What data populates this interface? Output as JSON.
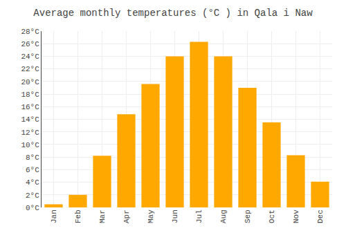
{
  "chart_data": {
    "type": "bar",
    "title": "Average monthly temperatures (°C ) in Qala i Naw",
    "categories": [
      "Jan",
      "Feb",
      "Mar",
      "Apr",
      "May",
      "Jun",
      "Jul",
      "Aug",
      "Sep",
      "Oct",
      "Nov",
      "Dec"
    ],
    "values": [
      0.5,
      2.0,
      8.2,
      14.8,
      19.6,
      24.0,
      26.3,
      24.0,
      19.0,
      13.5,
      8.3,
      4.1
    ],
    "color": "#FFA800",
    "ylim": [
      0,
      28
    ],
    "yticks": [
      {
        "value": 0,
        "label": "0°C"
      },
      {
        "value": 2,
        "label": "2°C"
      },
      {
        "value": 4,
        "label": "4°C"
      },
      {
        "value": 6,
        "label": "6°C"
      },
      {
        "value": 8,
        "label": "8°C"
      },
      {
        "value": 10,
        "label": "10°C"
      },
      {
        "value": 12,
        "label": "12°C"
      },
      {
        "value": 14,
        "label": "14°C"
      },
      {
        "value": 16,
        "label": "16°C"
      },
      {
        "value": 18,
        "label": "18°C"
      },
      {
        "value": 20,
        "label": "20°C"
      },
      {
        "value": 22,
        "label": "22°C"
      },
      {
        "value": 24,
        "label": "24°C"
      },
      {
        "value": 26,
        "label": "26°C"
      },
      {
        "value": 28,
        "label": "28°C"
      }
    ],
    "grid": true
  }
}
